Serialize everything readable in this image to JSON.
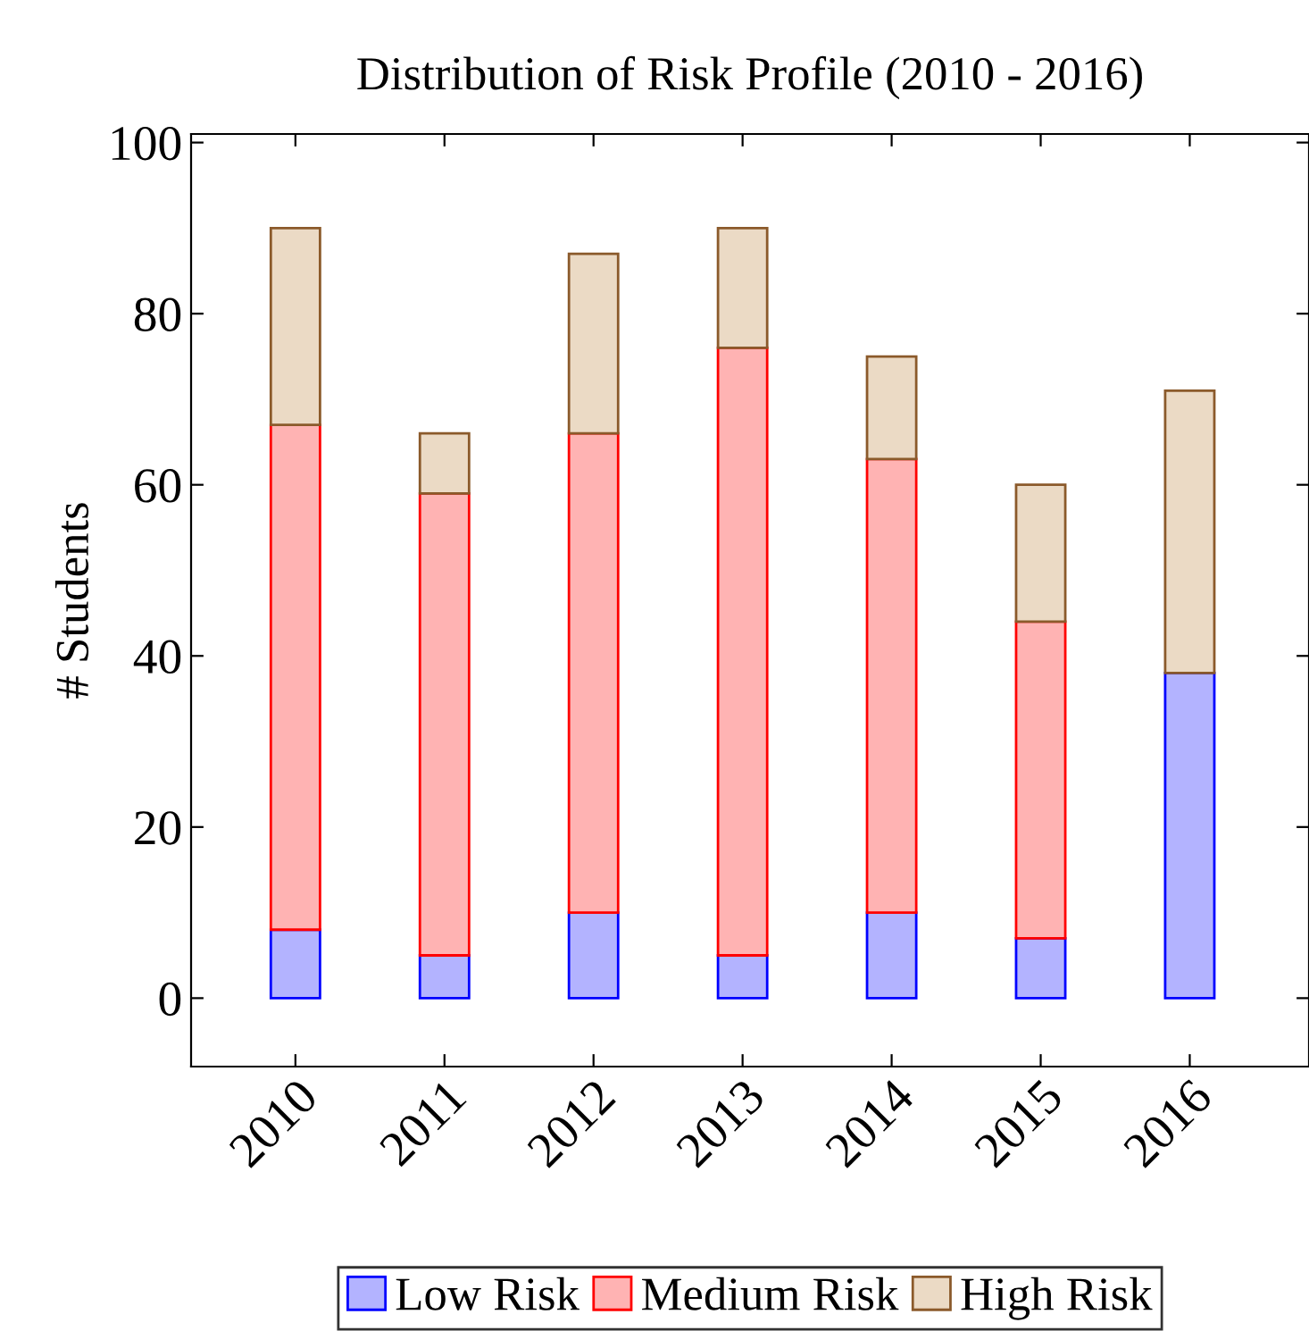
{
  "chart_data": {
    "type": "bar",
    "stacked": true,
    "title": "Distribution of Risk Profile (2010 - 2016)",
    "ylabel": "# Students",
    "categories": [
      "2010",
      "2011",
      "2012",
      "2013",
      "2014",
      "2015",
      "2016"
    ],
    "series": [
      {
        "name": "Low Risk",
        "color": "#b3b3ff",
        "values": [
          8,
          5,
          10,
          5,
          10,
          7,
          38
        ]
      },
      {
        "name": "Medium Risk",
        "color": "#ffb3b3",
        "values": [
          59,
          54,
          56,
          71,
          53,
          37,
          null
        ]
      },
      {
        "name": "High Risk",
        "color": "#ebdac5",
        "values": [
          23,
          7,
          21,
          14,
          12,
          16,
          33
        ]
      }
    ],
    "ylim": [
      -8,
      101
    ],
    "yticks": [
      0,
      20,
      40,
      60,
      80,
      100
    ],
    "grid": false,
    "legend": "bottom"
  }
}
